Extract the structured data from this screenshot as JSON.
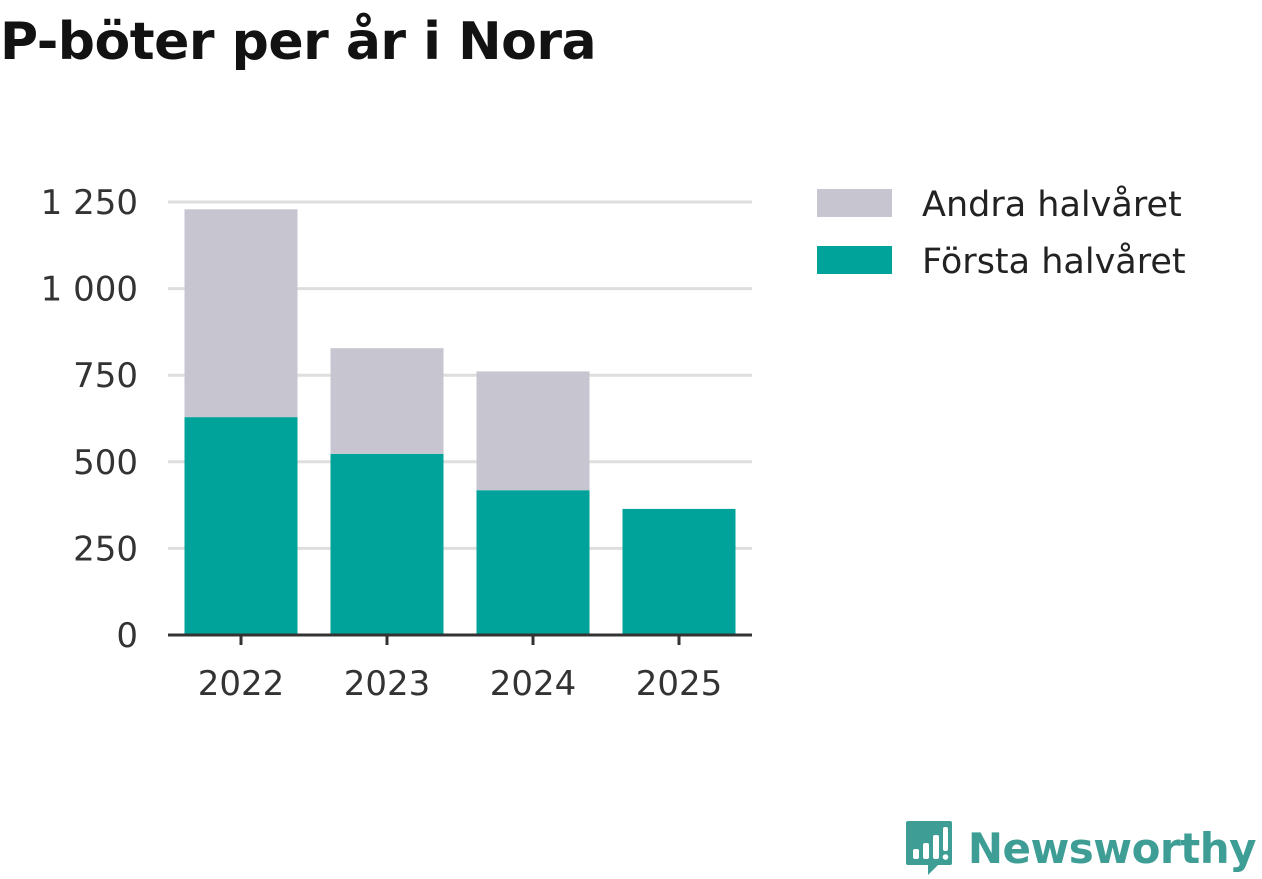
{
  "chart_data": {
    "type": "bar",
    "stacked": true,
    "title": "P-böter per år i Nora",
    "categories": [
      "2022",
      "2023",
      "2024",
      "2025"
    ],
    "series": [
      {
        "name": "Första halvåret",
        "color": "#00a39a",
        "values": [
          629,
          523,
          418,
          364
        ]
      },
      {
        "name": "Andra halvåret",
        "color": "#c7c6d0",
        "values": [
          600,
          305,
          343,
          0
        ]
      }
    ],
    "yticks": [
      0,
      250,
      500,
      750,
      1000,
      1250
    ],
    "ytick_labels": [
      "0",
      "250",
      "500",
      "750",
      "1 000",
      "1 250"
    ],
    "ylim": [
      0,
      1250
    ],
    "grid": true,
    "legend_position": "right",
    "legend_order": [
      "Andra halvåret",
      "Första halvåret"
    ],
    "xlabel": "",
    "ylabel": ""
  },
  "brand": {
    "name": "Newsworthy",
    "icon": "newsworthy-logo-icon",
    "color": "#3e9e96"
  }
}
